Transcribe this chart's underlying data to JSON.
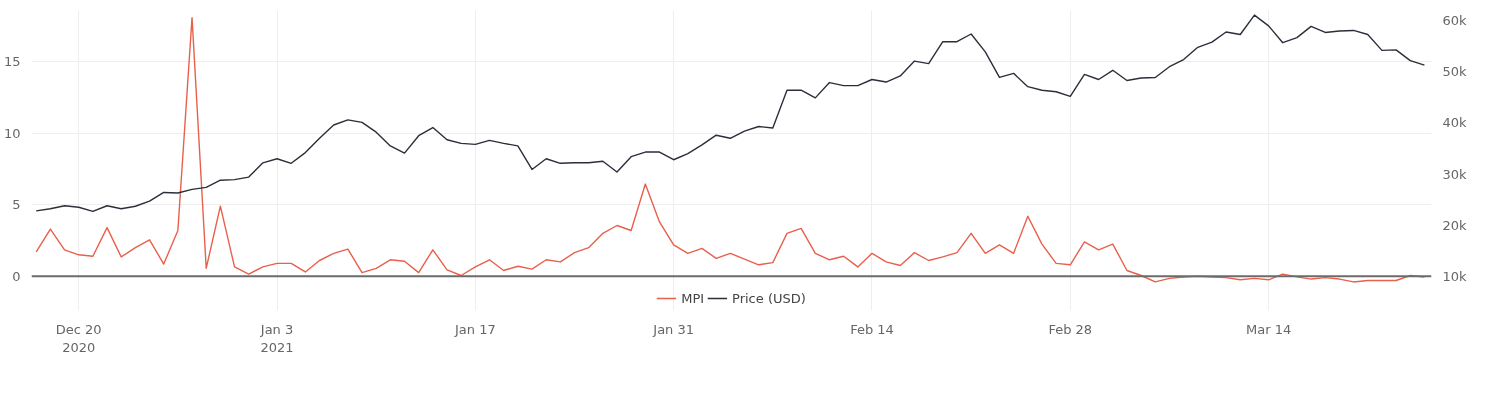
{
  "chart_data": {
    "type": "line",
    "x": [
      "2020-12-17",
      "2020-12-18",
      "2020-12-19",
      "2020-12-20",
      "2020-12-21",
      "2020-12-22",
      "2020-12-23",
      "2020-12-24",
      "2020-12-25",
      "2020-12-26",
      "2020-12-27",
      "2020-12-28",
      "2020-12-29",
      "2020-12-30",
      "2020-12-31",
      "2021-01-01",
      "2021-01-02",
      "2021-01-03",
      "2021-01-04",
      "2021-01-05",
      "2021-01-06",
      "2021-01-07",
      "2021-01-08",
      "2021-01-09",
      "2021-01-10",
      "2021-01-11",
      "2021-01-12",
      "2021-01-13",
      "2021-01-14",
      "2021-01-15",
      "2021-01-16",
      "2021-01-17",
      "2021-01-18",
      "2021-01-19",
      "2021-01-20",
      "2021-01-21",
      "2021-01-22",
      "2021-01-23",
      "2021-01-24",
      "2021-01-25",
      "2021-01-26",
      "2021-01-27",
      "2021-01-28",
      "2021-01-29",
      "2021-01-30",
      "2021-01-31",
      "2021-02-01",
      "2021-02-02",
      "2021-02-03",
      "2021-02-04",
      "2021-02-05",
      "2021-02-06",
      "2021-02-07",
      "2021-02-08",
      "2021-02-09",
      "2021-02-10",
      "2021-02-11",
      "2021-02-12",
      "2021-02-13",
      "2021-02-14",
      "2021-02-15",
      "2021-02-16",
      "2021-02-17",
      "2021-02-18",
      "2021-02-19",
      "2021-02-20",
      "2021-02-21",
      "2021-02-22",
      "2021-02-23",
      "2021-02-24",
      "2021-02-25",
      "2021-02-26",
      "2021-02-27",
      "2021-02-28",
      "2021-03-01",
      "2021-03-02",
      "2021-03-03",
      "2021-03-04",
      "2021-03-05",
      "2021-03-06",
      "2021-03-07",
      "2021-03-08",
      "2021-03-09",
      "2021-03-10",
      "2021-03-11",
      "2021-03-12",
      "2021-03-13",
      "2021-03-14",
      "2021-03-15",
      "2021-03-16",
      "2021-03-17",
      "2021-03-18",
      "2021-03-19",
      "2021-03-20",
      "2021-03-21",
      "2021-03-22",
      "2021-03-23",
      "2021-03-24",
      "2021-03-25"
    ],
    "series": [
      {
        "name": "MPI",
        "color": "#e8604c",
        "values": [
          1.7,
          3.3,
          1.85,
          1.5,
          1.4,
          3.4,
          1.35,
          2.0,
          2.55,
          0.85,
          3.2,
          18.1,
          0.55,
          4.9,
          0.65,
          0.15,
          0.65,
          0.9,
          0.9,
          0.3,
          1.1,
          1.6,
          1.9,
          0.25,
          0.55,
          1.15,
          1.05,
          0.25,
          1.85,
          0.45,
          0.05,
          0.65,
          1.15,
          0.4,
          0.7,
          0.5,
          1.15,
          1.0,
          1.65,
          2.0,
          3.0,
          3.55,
          3.2,
          6.45,
          3.8,
          2.2,
          1.6,
          1.95,
          1.25,
          1.6,
          1.2,
          0.8,
          0.95,
          3.0,
          3.35,
          1.6,
          1.15,
          1.4,
          0.65,
          1.6,
          1.0,
          0.75,
          1.65,
          1.1,
          1.35,
          1.65,
          3.0,
          1.6,
          2.2,
          1.6,
          4.2,
          2.25,
          0.9,
          0.8,
          2.4,
          1.85,
          2.25,
          0.4,
          0.05,
          -0.4,
          -0.15,
          -0.05,
          0,
          -0.05,
          -0.1,
          -0.25,
          -0.15,
          -0.25,
          0.15,
          -0.05,
          -0.2,
          -0.1,
          -0.2,
          -0.4,
          -0.3,
          -0.3,
          -0.3,
          0.05,
          -0.05
        ]
      },
      {
        "name": "Price (USD)",
        "color": "#2a2f3a",
        "axis": "y2",
        "values": [
          22800,
          23200,
          23800,
          23500,
          22700,
          23800,
          23200,
          23700,
          24700,
          26400,
          26300,
          27000,
          27400,
          28800,
          28900,
          29400,
          32200,
          33000,
          32100,
          34200,
          37000,
          39600,
          40600,
          40100,
          38200,
          35500,
          34100,
          37500,
          39100,
          36700,
          36000,
          35800,
          36600,
          36000,
          35500,
          30900,
          33000,
          32100,
          32200,
          32200,
          32500,
          30400,
          33400,
          34300,
          34300,
          32800,
          34000,
          35700,
          37600,
          37000,
          38400,
          39300,
          39000,
          46400,
          46400,
          44900,
          47900,
          47300,
          47300,
          48500,
          48000,
          49200,
          52100,
          51600,
          55900,
          55900,
          57400,
          53900,
          48900,
          49700,
          47100,
          46400,
          46100,
          45200,
          49500,
          48500,
          50300,
          48300,
          48800,
          48900,
          51000,
          52400,
          54800,
          55800,
          57800,
          57300,
          61100,
          59000,
          55700,
          56700,
          58900,
          57700,
          58000,
          58100,
          57300,
          54200,
          54300,
          52200,
          51300
        ]
      }
    ],
    "xlim": [
      "2020-12-16T16:00",
      "2021-03-25T12:00"
    ],
    "xticks": [
      {
        "value": "2020-12-20",
        "label": "Dec 20\n2020"
      },
      {
        "value": "2021-01-03",
        "label": "Jan 3\n2021"
      },
      {
        "value": "2021-01-17",
        "label": "Jan 17"
      },
      {
        "value": "2021-01-31",
        "label": "Jan 31"
      },
      {
        "value": "2021-02-14",
        "label": "Feb 14"
      },
      {
        "value": "2021-02-28",
        "label": "Feb 28"
      },
      {
        "value": "2021-03-14",
        "label": "Mar 14"
      }
    ],
    "ylim": [
      -2.4,
      18.6
    ],
    "yticks": [
      0,
      5,
      10,
      15
    ],
    "y2lim": [
      3300,
      62000
    ],
    "y2ticks": [
      {
        "value": 10000,
        "label": "10k"
      },
      {
        "value": 20000,
        "label": "20k"
      },
      {
        "value": 30000,
        "label": "30k"
      },
      {
        "value": 40000,
        "label": "40k"
      },
      {
        "value": 50000,
        "label": "50k"
      },
      {
        "value": 60000,
        "label": "60k"
      }
    ],
    "ref_lines": [
      {
        "axis": "y",
        "value": 0,
        "label": null,
        "color": "#6b6b6b"
      }
    ],
    "grid": true,
    "legend": "bottom",
    "line_style": "solid",
    "marker": "none"
  }
}
